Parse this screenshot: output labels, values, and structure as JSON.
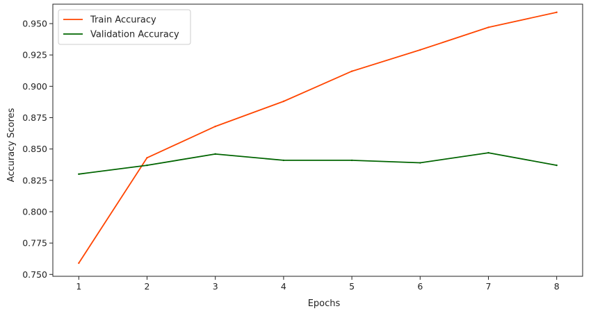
{
  "chart_data": {
    "type": "line",
    "title": "",
    "xlabel": "Epochs",
    "ylabel": "Accuracy Scores",
    "x": [
      1,
      2,
      3,
      4,
      5,
      6,
      7,
      8
    ],
    "xlim": [
      0.62,
      8.38
    ],
    "ylim": [
      0.7485,
      0.9655
    ],
    "xticks": [
      "1",
      "2",
      "3",
      "4",
      "5",
      "6",
      "7",
      "8"
    ],
    "yticks": [
      "0.750",
      "0.775",
      "0.800",
      "0.825",
      "0.850",
      "0.875",
      "0.900",
      "0.925",
      "0.950"
    ],
    "grid": false,
    "legend_position": "top-left",
    "series": [
      {
        "name": "Train Accuracy",
        "color": "#ff4500",
        "values": [
          0.759,
          0.843,
          0.868,
          0.888,
          0.912,
          0.929,
          0.947,
          0.959
        ]
      },
      {
        "name": "Validation Accuracy",
        "color": "#006400",
        "values": [
          0.83,
          0.837,
          0.846,
          0.841,
          0.841,
          0.839,
          0.847,
          0.837
        ]
      }
    ]
  }
}
